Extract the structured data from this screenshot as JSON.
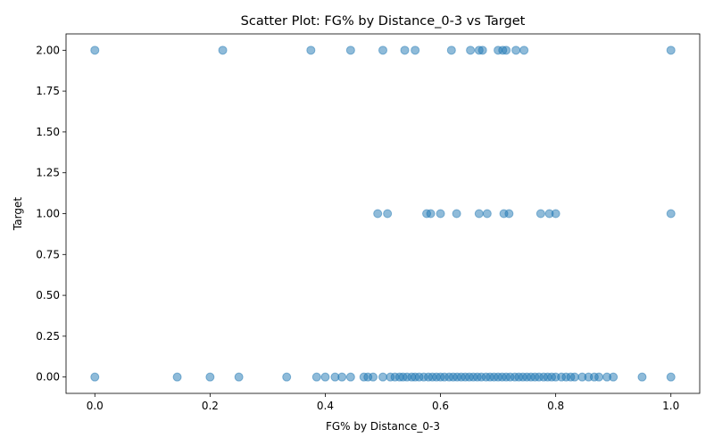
{
  "chart_data": {
    "type": "scatter",
    "title": "Scatter Plot: FG% by Distance_0-3 vs Target",
    "xlabel": "FG% by Distance_0-3",
    "ylabel": "Target",
    "xlim": [
      -0.05,
      1.05
    ],
    "ylim": [
      -0.1,
      2.1
    ],
    "x_ticks": [
      0.0,
      0.2,
      0.4,
      0.6,
      0.8,
      1.0
    ],
    "x_tick_labels": [
      "0.0",
      "0.2",
      "0.4",
      "0.6",
      "0.8",
      "1.0"
    ],
    "y_ticks": [
      0.0,
      0.25,
      0.5,
      0.75,
      1.0,
      1.25,
      1.5,
      1.75,
      2.0
    ],
    "y_tick_labels": [
      "0.00",
      "0.25",
      "0.50",
      "0.75",
      "1.00",
      "1.25",
      "1.50",
      "1.75",
      "2.00"
    ],
    "grid": false,
    "marker_color": "#1f77b4",
    "marker_alpha": 0.5,
    "points": [
      {
        "x": 0.0,
        "y": 2
      },
      {
        "x": 0.222,
        "y": 2
      },
      {
        "x": 0.375,
        "y": 2
      },
      {
        "x": 0.444,
        "y": 2
      },
      {
        "x": 0.5,
        "y": 2
      },
      {
        "x": 0.538,
        "y": 2
      },
      {
        "x": 0.556,
        "y": 2
      },
      {
        "x": 0.619,
        "y": 2
      },
      {
        "x": 0.652,
        "y": 2
      },
      {
        "x": 0.667,
        "y": 2
      },
      {
        "x": 0.673,
        "y": 2
      },
      {
        "x": 0.7,
        "y": 2
      },
      {
        "x": 0.708,
        "y": 2
      },
      {
        "x": 0.714,
        "y": 2
      },
      {
        "x": 0.731,
        "y": 2
      },
      {
        "x": 0.745,
        "y": 2
      },
      {
        "x": 1.0,
        "y": 2
      },
      {
        "x": 0.491,
        "y": 1
      },
      {
        "x": 0.508,
        "y": 1
      },
      {
        "x": 0.576,
        "y": 1
      },
      {
        "x": 0.583,
        "y": 1
      },
      {
        "x": 0.6,
        "y": 1
      },
      {
        "x": 0.628,
        "y": 1
      },
      {
        "x": 0.667,
        "y": 1
      },
      {
        "x": 0.681,
        "y": 1
      },
      {
        "x": 0.71,
        "y": 1
      },
      {
        "x": 0.719,
        "y": 1
      },
      {
        "x": 0.774,
        "y": 1
      },
      {
        "x": 0.789,
        "y": 1
      },
      {
        "x": 0.8,
        "y": 1
      },
      {
        "x": 1.0,
        "y": 1
      },
      {
        "x": 0.0,
        "y": 0
      },
      {
        "x": 0.143,
        "y": 0
      },
      {
        "x": 0.2,
        "y": 0
      },
      {
        "x": 0.25,
        "y": 0
      },
      {
        "x": 0.333,
        "y": 0
      },
      {
        "x": 0.385,
        "y": 0
      },
      {
        "x": 0.4,
        "y": 0
      },
      {
        "x": 0.417,
        "y": 0
      },
      {
        "x": 0.429,
        "y": 0
      },
      {
        "x": 0.444,
        "y": 0
      },
      {
        "x": 0.467,
        "y": 0
      },
      {
        "x": 0.474,
        "y": 0
      },
      {
        "x": 0.483,
        "y": 0
      },
      {
        "x": 0.5,
        "y": 0
      },
      {
        "x": 0.513,
        "y": 0
      },
      {
        "x": 0.521,
        "y": 0
      },
      {
        "x": 0.529,
        "y": 0
      },
      {
        "x": 0.535,
        "y": 0
      },
      {
        "x": 0.542,
        "y": 0
      },
      {
        "x": 0.55,
        "y": 0
      },
      {
        "x": 0.556,
        "y": 0
      },
      {
        "x": 0.563,
        "y": 0
      },
      {
        "x": 0.571,
        "y": 0
      },
      {
        "x": 0.579,
        "y": 0
      },
      {
        "x": 0.586,
        "y": 0
      },
      {
        "x": 0.593,
        "y": 0
      },
      {
        "x": 0.6,
        "y": 0
      },
      {
        "x": 0.607,
        "y": 0
      },
      {
        "x": 0.615,
        "y": 0
      },
      {
        "x": 0.622,
        "y": 0
      },
      {
        "x": 0.629,
        "y": 0
      },
      {
        "x": 0.636,
        "y": 0
      },
      {
        "x": 0.643,
        "y": 0
      },
      {
        "x": 0.65,
        "y": 0
      },
      {
        "x": 0.657,
        "y": 0
      },
      {
        "x": 0.664,
        "y": 0
      },
      {
        "x": 0.671,
        "y": 0
      },
      {
        "x": 0.679,
        "y": 0
      },
      {
        "x": 0.686,
        "y": 0
      },
      {
        "x": 0.693,
        "y": 0
      },
      {
        "x": 0.7,
        "y": 0
      },
      {
        "x": 0.707,
        "y": 0
      },
      {
        "x": 0.714,
        "y": 0
      },
      {
        "x": 0.721,
        "y": 0
      },
      {
        "x": 0.729,
        "y": 0
      },
      {
        "x": 0.736,
        "y": 0
      },
      {
        "x": 0.743,
        "y": 0
      },
      {
        "x": 0.75,
        "y": 0
      },
      {
        "x": 0.757,
        "y": 0
      },
      {
        "x": 0.764,
        "y": 0
      },
      {
        "x": 0.771,
        "y": 0
      },
      {
        "x": 0.779,
        "y": 0
      },
      {
        "x": 0.786,
        "y": 0
      },
      {
        "x": 0.793,
        "y": 0
      },
      {
        "x": 0.8,
        "y": 0
      },
      {
        "x": 0.81,
        "y": 0
      },
      {
        "x": 0.818,
        "y": 0
      },
      {
        "x": 0.826,
        "y": 0
      },
      {
        "x": 0.833,
        "y": 0
      },
      {
        "x": 0.846,
        "y": 0
      },
      {
        "x": 0.857,
        "y": 0
      },
      {
        "x": 0.867,
        "y": 0
      },
      {
        "x": 0.875,
        "y": 0
      },
      {
        "x": 0.889,
        "y": 0
      },
      {
        "x": 0.9,
        "y": 0
      },
      {
        "x": 0.95,
        "y": 0
      },
      {
        "x": 1.0,
        "y": 0
      }
    ]
  }
}
